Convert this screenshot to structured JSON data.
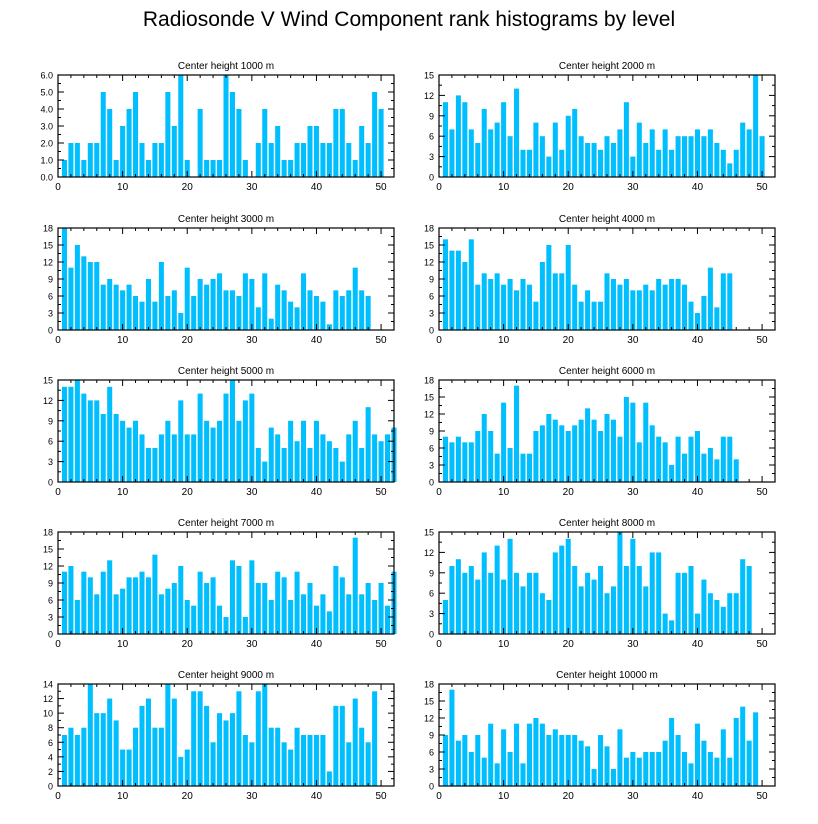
{
  "title": "Radiosonde V Wind Component rank histograms by level",
  "bar_color": "#00bfff",
  "chart_data": [
    {
      "type": "bar",
      "title": "Center height 1000 m",
      "xlabel": "",
      "ylabel": "",
      "xlim": [
        0,
        52
      ],
      "ylim": [
        0,
        6
      ],
      "xticks": [
        0,
        10,
        20,
        30,
        40,
        50
      ],
      "xtick_labels": [
        "0",
        "10",
        "20",
        "30",
        "40",
        "50"
      ],
      "yticks": [
        0,
        1,
        2,
        3,
        4,
        5,
        6
      ],
      "ytick_labels": [
        "0.0",
        "1.0",
        "2.0",
        "3.0",
        "4.0",
        "5.0",
        "6.0"
      ],
      "values": [
        1,
        2,
        2,
        1,
        2,
        2,
        5,
        4,
        1,
        3,
        4,
        5,
        2,
        1,
        2,
        2,
        5,
        3,
        6,
        1,
        0,
        4,
        1,
        1,
        1,
        6,
        5,
        4,
        1,
        0,
        2,
        4,
        2,
        3,
        1,
        1,
        2,
        2,
        3,
        3,
        2,
        2,
        4,
        4,
        2,
        1,
        3,
        2,
        5,
        4
      ]
    },
    {
      "type": "bar",
      "title": "Center height 2000 m",
      "xlabel": "",
      "ylabel": "",
      "xlim": [
        0,
        52
      ],
      "ylim": [
        0,
        15
      ],
      "xticks": [
        0,
        10,
        20,
        30,
        40,
        50
      ],
      "xtick_labels": [
        "0",
        "10",
        "20",
        "30",
        "40",
        "50"
      ],
      "yticks": [
        0,
        3,
        6,
        9,
        12,
        15
      ],
      "ytick_labels": [
        "0",
        "3",
        "6",
        "9",
        "12",
        "15"
      ],
      "values": [
        11,
        7,
        12,
        11,
        7,
        5,
        10,
        7,
        8,
        11,
        6,
        13,
        4,
        4,
        8,
        6,
        3,
        8,
        4,
        9,
        10,
        6,
        5,
        5,
        4,
        6,
        5,
        7,
        11,
        3,
        8,
        5,
        7,
        4,
        7,
        4,
        6,
        6,
        6,
        7,
        6,
        7,
        5,
        4,
        2,
        4,
        8,
        7,
        15,
        6
      ]
    },
    {
      "type": "bar",
      "title": "Center height 3000 m",
      "xlabel": "",
      "ylabel": "",
      "xlim": [
        0,
        52
      ],
      "ylim": [
        0,
        18
      ],
      "xticks": [
        0,
        10,
        20,
        30,
        40,
        50
      ],
      "xtick_labels": [
        "0",
        "10",
        "20",
        "30",
        "40",
        "50"
      ],
      "yticks": [
        0,
        3,
        6,
        9,
        12,
        15,
        18
      ],
      "ytick_labels": [
        "0",
        "3",
        "6",
        "9",
        "12",
        "15",
        "18"
      ],
      "values": [
        18,
        11,
        15,
        13,
        12,
        12,
        8,
        9,
        8,
        7,
        8,
        6,
        5,
        9,
        5,
        12,
        6,
        7,
        3,
        11,
        6,
        9,
        8,
        9,
        10,
        7,
        7,
        6,
        10,
        9,
        4,
        10,
        2,
        8,
        7,
        5,
        4,
        10,
        7,
        6,
        5,
        1,
        7,
        6,
        7,
        11,
        7,
        6
      ]
    },
    {
      "type": "bar",
      "title": "Center height 4000 m",
      "xlabel": "",
      "ylabel": "",
      "xlim": [
        0,
        52
      ],
      "ylim": [
        0,
        18
      ],
      "xticks": [
        0,
        10,
        20,
        30,
        40,
        50
      ],
      "xtick_labels": [
        "0",
        "10",
        "20",
        "30",
        "40",
        "50"
      ],
      "yticks": [
        0,
        3,
        6,
        9,
        12,
        15,
        18
      ],
      "ytick_labels": [
        "0",
        "3",
        "6",
        "9",
        "12",
        "15",
        "18"
      ],
      "values": [
        16,
        14,
        14,
        12,
        16,
        8,
        10,
        9,
        10,
        8,
        9,
        7,
        9,
        8,
        5,
        12,
        15,
        10,
        10,
        15,
        8,
        5,
        7,
        5,
        5,
        10,
        9,
        8,
        9,
        7,
        7,
        8,
        7,
        9,
        8,
        9,
        9,
        8,
        5,
        3,
        6,
        11,
        4,
        10,
        10
      ]
    },
    {
      "type": "bar",
      "title": "Center height 5000 m",
      "xlabel": "",
      "ylabel": "",
      "xlim": [
        0,
        52
      ],
      "ylim": [
        0,
        15
      ],
      "xticks": [
        0,
        10,
        20,
        30,
        40,
        50
      ],
      "xtick_labels": [
        "0",
        "10",
        "20",
        "30",
        "40",
        "50"
      ],
      "yticks": [
        0,
        3,
        6,
        9,
        12,
        15
      ],
      "ytick_labels": [
        "0",
        "3",
        "6",
        "9",
        "12",
        "15"
      ],
      "values": [
        14,
        14,
        15,
        13,
        12,
        12,
        10,
        14,
        10,
        9,
        8,
        9,
        7,
        5,
        5,
        7,
        9,
        7,
        12,
        7,
        7,
        13,
        9,
        8,
        9,
        13,
        15,
        9,
        12,
        13,
        5,
        3,
        8,
        7,
        5,
        9,
        6,
        9,
        5,
        9,
        7,
        6,
        5,
        3,
        7,
        9,
        5,
        11,
        7,
        6,
        7,
        8
      ]
    },
    {
      "type": "bar",
      "title": "Center height 6000 m",
      "xlabel": "",
      "ylabel": "",
      "xlim": [
        0,
        52
      ],
      "ylim": [
        0,
        18
      ],
      "xticks": [
        0,
        10,
        20,
        30,
        40,
        50
      ],
      "xtick_labels": [
        "0",
        "10",
        "20",
        "30",
        "40",
        "50"
      ],
      "yticks": [
        0,
        3,
        6,
        9,
        12,
        15,
        18
      ],
      "ytick_labels": [
        "0",
        "3",
        "6",
        "9",
        "12",
        "15",
        "18"
      ],
      "values": [
        8,
        7,
        8,
        7,
        7,
        9,
        12,
        9,
        5,
        14,
        6,
        17,
        5,
        5,
        9,
        10,
        12,
        11,
        10,
        9,
        10,
        11,
        13,
        11,
        9,
        12,
        11,
        8,
        15,
        14,
        7,
        14,
        10,
        8,
        7,
        3,
        8,
        5,
        8,
        9,
        5,
        6,
        4,
        8,
        8,
        4
      ]
    },
    {
      "type": "bar",
      "title": "Center height 7000 m",
      "xlabel": "",
      "ylabel": "",
      "xlim": [
        0,
        52
      ],
      "ylim": [
        0,
        18
      ],
      "xticks": [
        0,
        10,
        20,
        30,
        40,
        50
      ],
      "xtick_labels": [
        "0",
        "10",
        "20",
        "30",
        "40",
        "50"
      ],
      "yticks": [
        0,
        3,
        6,
        9,
        12,
        15,
        18
      ],
      "ytick_labels": [
        "0",
        "3",
        "6",
        "9",
        "12",
        "15",
        "18"
      ],
      "values": [
        11,
        12,
        6,
        11,
        10,
        7,
        11,
        13,
        7,
        8,
        10,
        10,
        11,
        10,
        14,
        7,
        8,
        9,
        12,
        6,
        5,
        11,
        9,
        10,
        5,
        3,
        13,
        12,
        3,
        13,
        9,
        9,
        6,
        11,
        10,
        6,
        11,
        7,
        9,
        5,
        7,
        4,
        12,
        10,
        7,
        17,
        7,
        9,
        6,
        9,
        5,
        11
      ]
    },
    {
      "type": "bar",
      "title": "Center height 8000 m",
      "xlabel": "",
      "ylabel": "",
      "xlim": [
        0,
        52
      ],
      "ylim": [
        0,
        15
      ],
      "xticks": [
        0,
        10,
        20,
        30,
        40,
        50
      ],
      "xtick_labels": [
        "0",
        "10",
        "20",
        "30",
        "40",
        "50"
      ],
      "yticks": [
        0,
        3,
        6,
        9,
        12,
        15
      ],
      "ytick_labels": [
        "0",
        "3",
        "6",
        "9",
        "12",
        "15"
      ],
      "values": [
        5,
        10,
        11,
        9,
        10,
        8,
        12,
        9,
        13,
        8,
        14,
        9,
        7,
        9,
        9,
        6,
        5,
        12,
        13,
        14,
        10,
        7,
        9,
        8,
        10,
        6,
        7,
        15,
        10,
        14,
        10,
        7,
        12,
        12,
        3,
        2,
        9,
        9,
        10,
        3,
        8,
        6,
        5,
        4,
        6,
        6,
        11,
        10
      ]
    },
    {
      "type": "bar",
      "title": "Center height 9000 m",
      "xlabel": "",
      "ylabel": "",
      "xlim": [
        0,
        52
      ],
      "ylim": [
        0,
        14
      ],
      "xticks": [
        0,
        10,
        20,
        30,
        40,
        50
      ],
      "xtick_labels": [
        "0",
        "10",
        "20",
        "30",
        "40",
        "50"
      ],
      "yticks": [
        0,
        2,
        4,
        6,
        8,
        10,
        12,
        14
      ],
      "ytick_labels": [
        "0",
        "2",
        "4",
        "6",
        "8",
        "10",
        "12",
        "14"
      ],
      "values": [
        7,
        8,
        7,
        8,
        14,
        10,
        10,
        12,
        9,
        5,
        5,
        8,
        11,
        12,
        8,
        8,
        14,
        12,
        4,
        5,
        13,
        13,
        11,
        6,
        10,
        9,
        10,
        13,
        7,
        6,
        13,
        14,
        8,
        8,
        6,
        5,
        8,
        7,
        7,
        7,
        7,
        2,
        11,
        11,
        6,
        12,
        8,
        6,
        13
      ]
    },
    {
      "type": "bar",
      "title": "Center height 10000 m",
      "xlabel": "",
      "ylabel": "",
      "xlim": [
        0,
        52
      ],
      "ylim": [
        0,
        18
      ],
      "xticks": [
        0,
        10,
        20,
        30,
        40,
        50
      ],
      "xtick_labels": [
        "0",
        "10",
        "20",
        "30",
        "40",
        "50"
      ],
      "yticks": [
        0,
        3,
        6,
        9,
        12,
        15,
        18
      ],
      "ytick_labels": [
        "0",
        "3",
        "6",
        "9",
        "12",
        "15",
        "18"
      ],
      "values": [
        9,
        17,
        8,
        9,
        6,
        9,
        5,
        11,
        4,
        10,
        6,
        11,
        4,
        11,
        12,
        11,
        9,
        10,
        9,
        9,
        9,
        8,
        7,
        3,
        9,
        7,
        3,
        10,
        5,
        6,
        5,
        6,
        6,
        6,
        8,
        12,
        9,
        6,
        4,
        11,
        8,
        6,
        5,
        10,
        5,
        12,
        14,
        8,
        13
      ]
    }
  ]
}
